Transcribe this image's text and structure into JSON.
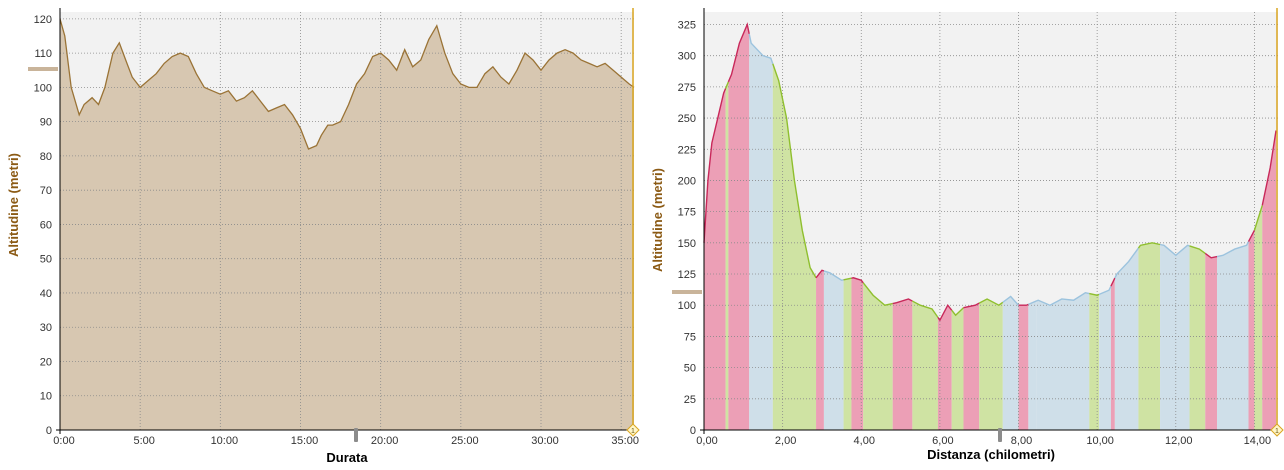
{
  "colors": {
    "panel_bg": "#f2f2f2",
    "grid": "#8a8a8a",
    "ylabel": "#8b5a14",
    "duration_fill": "#d7c7b1",
    "duration_line": "#9a7336",
    "cursor": "#d9a520",
    "marker": "#c9b49a",
    "band_red": "#ec9fb6",
    "band_green": "#cfe3a3",
    "band_blue": "#cfdfe9",
    "line_red": "#c8285a",
    "line_green": "#8fbf2e",
    "line_blue": "#9cc3de"
  },
  "chart_data": [
    {
      "type": "area",
      "xlabel": "Durata",
      "ylabel": "Altitudine (metri)",
      "xlim": [
        0,
        35.8
      ],
      "ylim": [
        0,
        122
      ],
      "x_ticks": [
        "0:00",
        "5:00",
        "10:00",
        "15:00",
        "20:00",
        "25:00",
        "30:00",
        "35:00"
      ],
      "y_ticks": [
        "0",
        "10",
        "20",
        "30",
        "40",
        "50",
        "60",
        "70",
        "80",
        "90",
        "100",
        "110",
        "120"
      ],
      "grid": true,
      "x": [
        0,
        0.3,
        0.7,
        1.2,
        1.5,
        2.0,
        2.4,
        2.8,
        3.3,
        3.7,
        4.1,
        4.5,
        5.0,
        5.5,
        6.0,
        6.5,
        7.0,
        7.5,
        8.0,
        8.5,
        9.0,
        9.5,
        10.0,
        10.5,
        11.0,
        11.5,
        12.0,
        12.5,
        13.0,
        13.5,
        14.0,
        14.5,
        15.0,
        15.5,
        16.0,
        16.3,
        16.7,
        17.0,
        17.5,
        18.0,
        18.5,
        19.0,
        19.5,
        20.0,
        20.5,
        21.0,
        21.5,
        22.0,
        22.5,
        23.0,
        23.5,
        24.0,
        24.5,
        25.0,
        25.5,
        26.0,
        26.5,
        27.0,
        27.5,
        28.0,
        28.5,
        29.0,
        29.5,
        30.0,
        30.5,
        31.0,
        31.5,
        32.0,
        32.5,
        33.0,
        33.5,
        34.0,
        34.5,
        35.0,
        35.5,
        35.8
      ],
      "y": [
        120,
        115,
        100,
        92,
        95,
        97,
        95,
        100,
        110,
        113,
        108,
        103,
        100,
        102,
        104,
        107,
        109,
        110,
        109,
        104,
        100,
        99,
        98,
        99,
        96,
        97,
        99,
        96,
        93,
        94,
        95,
        92,
        88,
        82,
        83,
        86,
        89,
        89,
        90,
        95,
        101,
        104,
        109,
        110,
        108,
        105,
        111,
        106,
        108,
        114,
        118,
        110,
        104,
        101,
        100,
        100,
        104,
        106,
        103,
        101,
        105,
        110,
        108,
        105,
        108,
        110,
        111,
        110,
        108,
        107,
        106,
        107,
        105,
        103,
        101,
        100
      ],
      "cursor_marker": "1"
    },
    {
      "type": "area",
      "xlabel": "Distanza (chilometri)",
      "ylabel": "Altitudine (metri)",
      "xlim": [
        0,
        14.6
      ],
      "ylim": [
        0,
        335
      ],
      "x_ticks": [
        "0,00",
        "2,00",
        "4,00",
        "6,00",
        "8,00",
        "10,00",
        "12,00",
        "14,00"
      ],
      "y_ticks": [
        "0",
        "25",
        "50",
        "75",
        "100",
        "125",
        "150",
        "175",
        "200",
        "225",
        "250",
        "275",
        "300",
        "325"
      ],
      "grid": true,
      "x": [
        0,
        0.1,
        0.2,
        0.35,
        0.5,
        0.7,
        0.9,
        1.1,
        1.2,
        1.35,
        1.5,
        1.7,
        1.9,
        2.1,
        2.3,
        2.5,
        2.7,
        2.85,
        3.0,
        3.2,
        3.5,
        3.8,
        4.0,
        4.3,
        4.6,
        4.9,
        5.2,
        5.5,
        5.8,
        6.0,
        6.2,
        6.4,
        6.6,
        6.9,
        7.2,
        7.5,
        7.8,
        8.0,
        8.2,
        8.5,
        8.8,
        9.1,
        9.4,
        9.7,
        10.0,
        10.3,
        10.5,
        10.8,
        11.1,
        11.4,
        11.7,
        12.0,
        12.3,
        12.6,
        12.9,
        13.2,
        13.5,
        13.8,
        14.0,
        14.2,
        14.4,
        14.55
      ],
      "y": [
        150,
        200,
        230,
        250,
        270,
        285,
        310,
        325,
        310,
        305,
        300,
        298,
        280,
        250,
        200,
        160,
        130,
        122,
        128,
        126,
        120,
        122,
        120,
        108,
        100,
        102,
        105,
        100,
        97,
        88,
        100,
        92,
        98,
        100,
        105,
        100,
        107,
        100,
        100,
        104,
        100,
        105,
        104,
        110,
        108,
        112,
        125,
        135,
        148,
        150,
        148,
        140,
        148,
        145,
        138,
        140,
        145,
        148,
        160,
        180,
        210,
        240
      ],
      "segments": [
        {
          "from": 0.0,
          "to": 0.55,
          "zone": "red"
        },
        {
          "from": 0.55,
          "to": 0.62,
          "zone": "green"
        },
        {
          "from": 0.62,
          "to": 1.15,
          "zone": "red"
        },
        {
          "from": 1.15,
          "to": 1.75,
          "zone": "blue"
        },
        {
          "from": 1.75,
          "to": 2.85,
          "zone": "green"
        },
        {
          "from": 2.85,
          "to": 3.05,
          "zone": "red"
        },
        {
          "from": 3.05,
          "to": 3.55,
          "zone": "blue"
        },
        {
          "from": 3.55,
          "to": 3.75,
          "zone": "green"
        },
        {
          "from": 3.75,
          "to": 4.05,
          "zone": "red"
        },
        {
          "from": 4.05,
          "to": 4.8,
          "zone": "green"
        },
        {
          "from": 4.8,
          "to": 5.3,
          "zone": "red"
        },
        {
          "from": 5.3,
          "to": 5.95,
          "zone": "green"
        },
        {
          "from": 5.95,
          "to": 6.3,
          "zone": "red"
        },
        {
          "from": 6.3,
          "to": 6.6,
          "zone": "green"
        },
        {
          "from": 6.6,
          "to": 7.0,
          "zone": "red"
        },
        {
          "from": 7.0,
          "to": 7.6,
          "zone": "green"
        },
        {
          "from": 7.6,
          "to": 8.0,
          "zone": "blue"
        },
        {
          "from": 8.0,
          "to": 8.25,
          "zone": "red"
        },
        {
          "from": 8.25,
          "to": 8.45,
          "zone": "blue"
        },
        {
          "from": 8.45,
          "to": 9.8,
          "zone": "blue"
        },
        {
          "from": 9.8,
          "to": 10.05,
          "zone": "green"
        },
        {
          "from": 10.05,
          "to": 10.35,
          "zone": "blue"
        },
        {
          "from": 10.35,
          "to": 10.45,
          "zone": "red"
        },
        {
          "from": 10.45,
          "to": 11.05,
          "zone": "blue"
        },
        {
          "from": 11.05,
          "to": 11.6,
          "zone": "green"
        },
        {
          "from": 11.6,
          "to": 12.35,
          "zone": "blue"
        },
        {
          "from": 12.35,
          "to": 12.75,
          "zone": "green"
        },
        {
          "from": 12.75,
          "to": 13.05,
          "zone": "red"
        },
        {
          "from": 13.05,
          "to": 13.85,
          "zone": "blue"
        },
        {
          "from": 13.85,
          "to": 14.0,
          "zone": "red"
        },
        {
          "from": 14.0,
          "to": 14.2,
          "zone": "green"
        },
        {
          "from": 14.2,
          "to": 14.55,
          "zone": "red"
        }
      ],
      "cursor_marker": "1"
    }
  ]
}
